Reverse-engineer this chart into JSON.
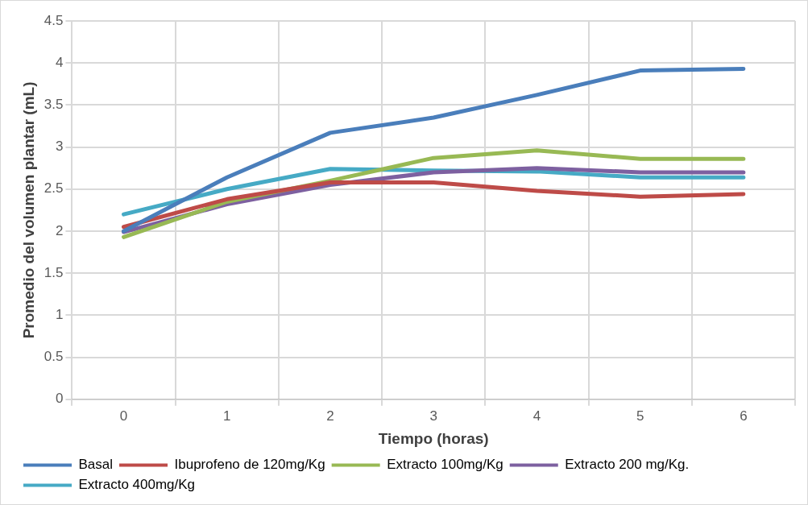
{
  "chart_data": {
    "type": "line",
    "xlabel": "Tiempo (horas)",
    "ylabel": "Promedio del volumen plantar (mL)",
    "categories": [
      "0",
      "1",
      "2",
      "3",
      "4",
      "5",
      "6"
    ],
    "ylim": [
      0,
      4.5
    ],
    "yticks": [
      0,
      0.5,
      1,
      1.5,
      2,
      2.5,
      3,
      3.5,
      4,
      4.5
    ],
    "grid": true,
    "legend": "bottom",
    "marker": "none",
    "line_style": "solid",
    "series": [
      {
        "name": "Basal",
        "color": "#4a7ebb",
        "values": [
          2.0,
          2.64,
          3.17,
          3.35,
          3.62,
          3.91,
          3.93
        ]
      },
      {
        "name": "Ibuprofeno de 120mg/Kg",
        "color": "#be4b48",
        "values": [
          2.05,
          2.38,
          2.58,
          2.58,
          2.48,
          2.41,
          2.44
        ]
      },
      {
        "name": "Extracto 100mg/Kg",
        "color": "#98b954",
        "values": [
          1.93,
          2.35,
          2.6,
          2.87,
          2.96,
          2.86,
          2.86
        ]
      },
      {
        "name": "Extracto 200 mg/Kg.",
        "color": "#7d60a0",
        "values": [
          1.99,
          2.32,
          2.55,
          2.7,
          2.75,
          2.7,
          2.7
        ]
      },
      {
        "name": "Extracto 400mg/Kg",
        "color": "#46aac5",
        "values": [
          2.2,
          2.5,
          2.74,
          2.72,
          2.71,
          2.64,
          2.64
        ]
      }
    ]
  }
}
